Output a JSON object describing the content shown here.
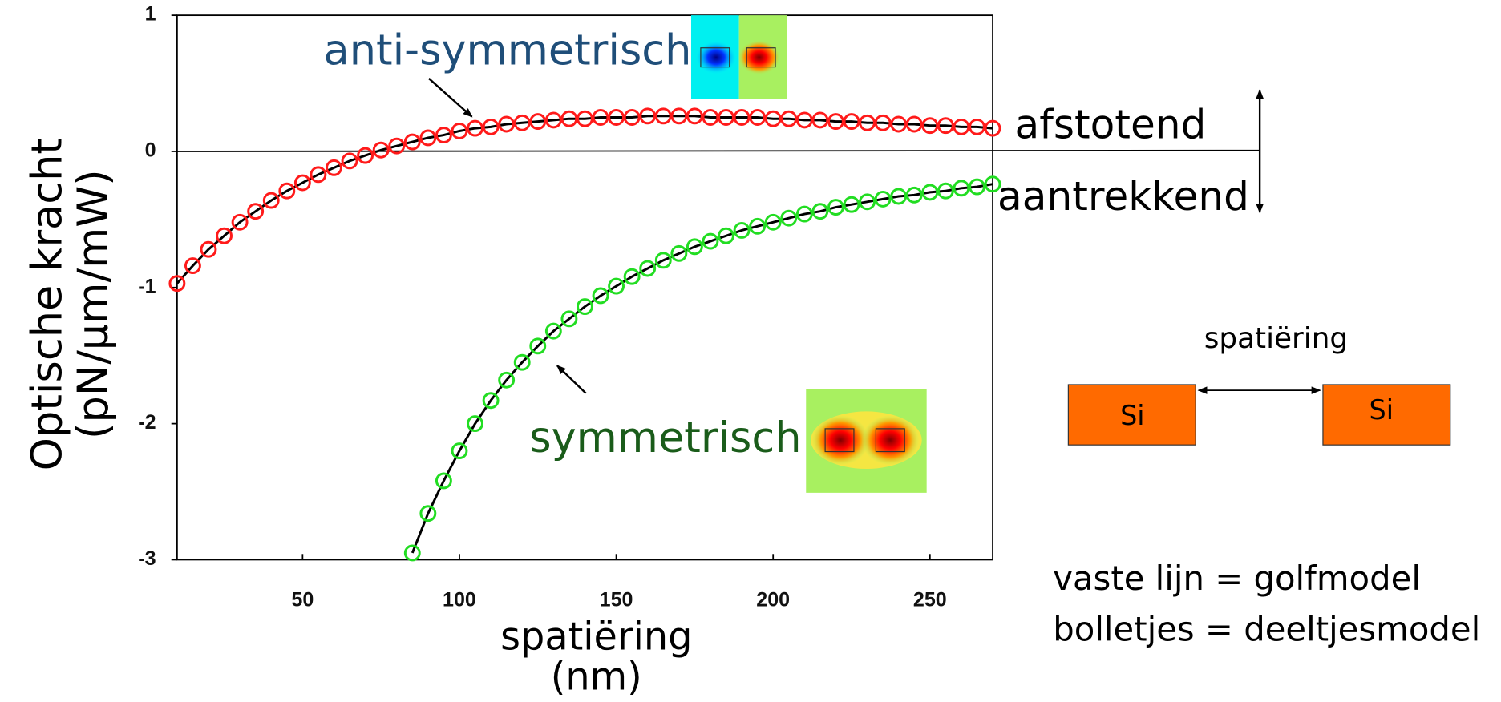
{
  "chart_data": {
    "type": "scatter",
    "xlabel": [
      "spatiëring",
      "(nm)"
    ],
    "ylabel": [
      "Optische kracht",
      "(pN/μm/mW)"
    ],
    "xlim": [
      10,
      270
    ],
    "ylim": [
      -3,
      1
    ],
    "xticks": [
      50,
      100,
      150,
      200,
      250
    ],
    "yticks": [
      -3,
      -2,
      -1,
      0,
      1
    ],
    "line_color": "#000000",
    "series": [
      {
        "name": "anti-symmetrisch",
        "color": "#ff1a1a",
        "label_color": "#1f4e79",
        "x": [
          10,
          15,
          20,
          25,
          30,
          35,
          40,
          45,
          50,
          55,
          60,
          65,
          70,
          75,
          80,
          85,
          90,
          95,
          100,
          105,
          110,
          115,
          120,
          125,
          130,
          135,
          140,
          145,
          150,
          155,
          160,
          165,
          170,
          175,
          180,
          185,
          190,
          195,
          200,
          205,
          210,
          215,
          220,
          225,
          230,
          235,
          240,
          245,
          250,
          255,
          260,
          265,
          270
        ],
        "values": [
          -0.97,
          -0.84,
          -0.72,
          -0.62,
          -0.52,
          -0.44,
          -0.36,
          -0.29,
          -0.23,
          -0.17,
          -0.12,
          -0.07,
          -0.03,
          0.01,
          0.04,
          0.07,
          0.1,
          0.12,
          0.15,
          0.17,
          0.18,
          0.2,
          0.21,
          0.22,
          0.23,
          0.24,
          0.24,
          0.25,
          0.25,
          0.25,
          0.26,
          0.26,
          0.26,
          0.26,
          0.25,
          0.25,
          0.25,
          0.25,
          0.24,
          0.24,
          0.23,
          0.23,
          0.22,
          0.22,
          0.21,
          0.21,
          0.2,
          0.2,
          0.19,
          0.19,
          0.18,
          0.18,
          0.17
        ]
      },
      {
        "name": "symmetrisch",
        "color": "#22dd22",
        "label_color": "#1a5c1a",
        "x": [
          85,
          90,
          95,
          100,
          105,
          110,
          115,
          120,
          125,
          130,
          135,
          140,
          145,
          150,
          155,
          160,
          165,
          170,
          175,
          180,
          185,
          190,
          195,
          200,
          205,
          210,
          215,
          220,
          225,
          230,
          235,
          240,
          245,
          250,
          255,
          260,
          265,
          270
        ],
        "values": [
          -2.95,
          -2.66,
          -2.42,
          -2.2,
          -2.0,
          -1.83,
          -1.68,
          -1.55,
          -1.43,
          -1.32,
          -1.23,
          -1.14,
          -1.06,
          -0.99,
          -0.92,
          -0.86,
          -0.8,
          -0.75,
          -0.7,
          -0.66,
          -0.62,
          -0.58,
          -0.55,
          -0.52,
          -0.49,
          -0.46,
          -0.44,
          -0.41,
          -0.39,
          -0.37,
          -0.35,
          -0.33,
          -0.32,
          -0.3,
          -0.29,
          -0.27,
          -0.26,
          -0.24
        ]
      }
    ],
    "annotations": {
      "repulsive": "afstotend",
      "attractive": "aantrekkend",
      "gap_label": "spatiëring",
      "block_left": "Si",
      "block_right": "Si",
      "legend_line": "vaste lijn = golfmodel",
      "legend_dots": "bolletjes = deeltjesmodel"
    }
  }
}
